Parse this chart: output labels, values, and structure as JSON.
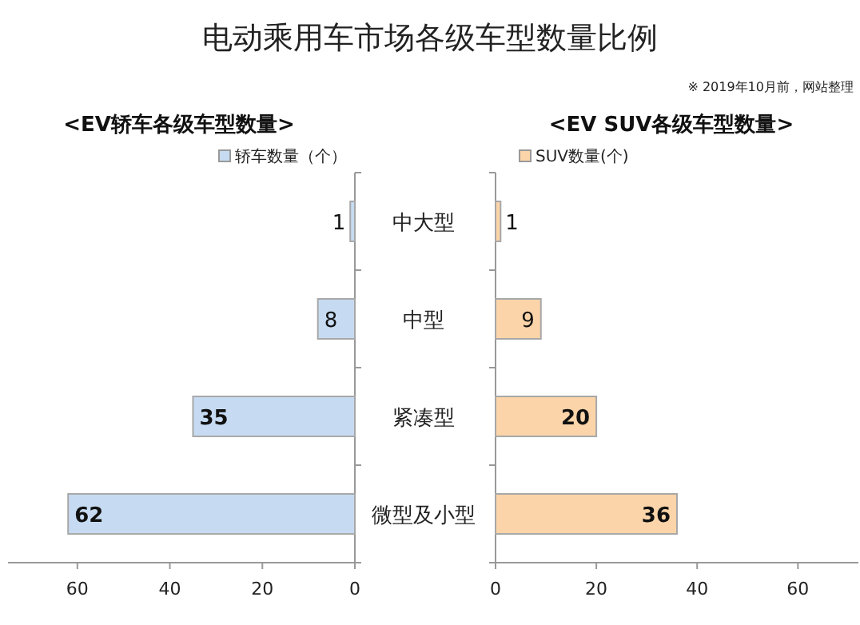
{
  "chart_data": [
    {
      "type": "bar",
      "orientation": "horizontal",
      "title": "电动乘用车市场各级车型数量比例",
      "subtitle": "<EV轿车各级车型数量>",
      "categories": [
        null,
        null,
        null,
        null
      ],
      "series": [
        {
          "name": "轿车数量（个）",
          "color": "#c6dbf2",
          "values": [
            1,
            8,
            35,
            62
          ]
        }
      ],
      "xlim": [
        75,
        0
      ],
      "xticks": [
        60,
        40,
        20,
        0
      ],
      "data_labels": true,
      "legend": "top"
    },
    {
      "type": "bar",
      "orientation": "horizontal",
      "subtitle": "<EV SUV各级车型数量>",
      "annotations": [
        "※ 2019年10月前，网站整理"
      ],
      "categories": [
        "中大型",
        "中型",
        "紧凑型",
        "微型及小型"
      ],
      "series": [
        {
          "name": "SUV数量(个)",
          "color": "#fbd4a9",
          "values": [
            1,
            9,
            20,
            36
          ]
        }
      ],
      "xlim": [
        0,
        72
      ],
      "xticks": [
        0,
        20,
        40,
        60
      ],
      "data_labels": true,
      "legend": "top"
    }
  ]
}
